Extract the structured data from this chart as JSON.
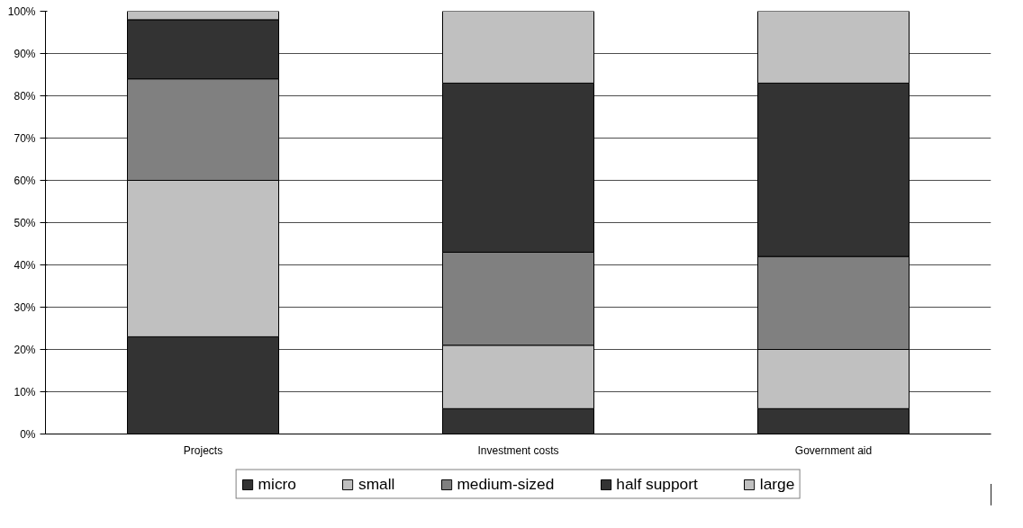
{
  "chart_data": {
    "type": "bar",
    "stacked": true,
    "categories": [
      "Projects",
      "Investment costs",
      "Government aid"
    ],
    "series": [
      {
        "name": "micro",
        "color": "#333333",
        "values": [
          23,
          6,
          6
        ]
      },
      {
        "name": "small",
        "color": "#c0c0c0",
        "values": [
          37,
          15,
          14
        ]
      },
      {
        "name": "medium-sized",
        "color": "#808080",
        "values": [
          24,
          22,
          22
        ]
      },
      {
        "name": "half support",
        "color": "#333333",
        "values": [
          14,
          40,
          41
        ]
      },
      {
        "name": "large",
        "color": "#c0c0c0",
        "values": [
          2,
          17,
          17
        ]
      }
    ],
    "ylim": [
      0,
      100
    ],
    "yticks": [
      {
        "value": 0,
        "label": "0%"
      },
      {
        "value": 10,
        "label": "10%"
      },
      {
        "value": 20,
        "label": "20%"
      },
      {
        "value": 30,
        "label": "30%"
      },
      {
        "value": 40,
        "label": "40%"
      },
      {
        "value": 50,
        "label": "50%"
      },
      {
        "value": 60,
        "label": "60%"
      },
      {
        "value": 70,
        "label": "70%"
      },
      {
        "value": 80,
        "label": "80%"
      },
      {
        "value": 90,
        "label": "90%"
      },
      {
        "value": 100,
        "label": "100%"
      }
    ],
    "grid": "y",
    "legend": "bottom"
  }
}
